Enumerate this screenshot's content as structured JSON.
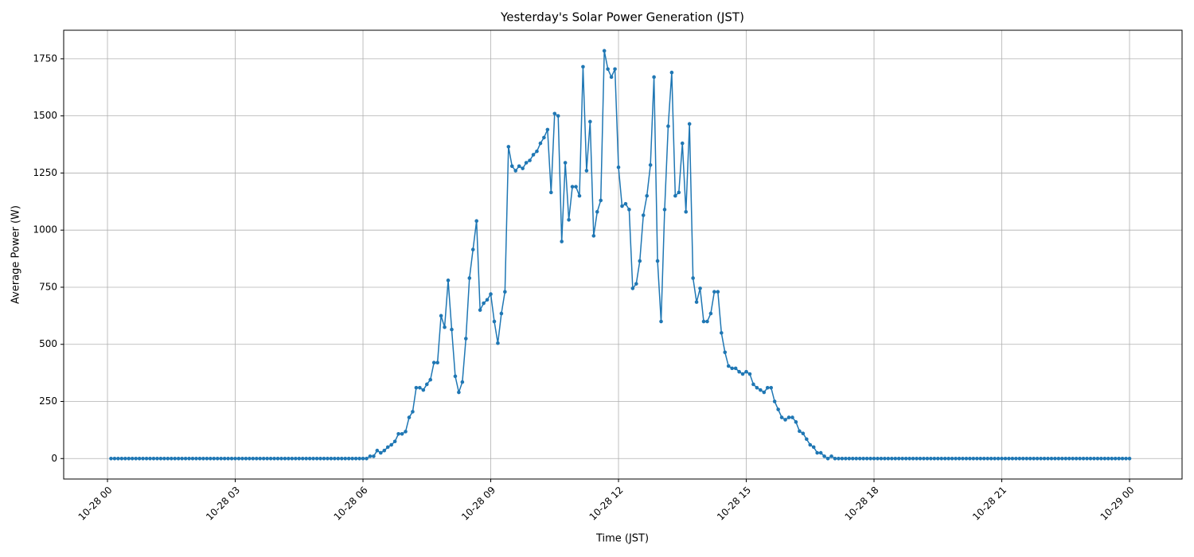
{
  "chart_data": {
    "type": "line",
    "title": "Yesterday's Solar Power Generation (JST)",
    "xlabel": "Time (JST)",
    "ylabel": "Average Power (W)",
    "color": "#1f77b4",
    "grid": true,
    "xlim": [
      -61.7,
      1514
    ],
    "xticks": [
      {
        "value": 0,
        "label": "10-28 00"
      },
      {
        "value": 180,
        "label": "10-28 03"
      },
      {
        "value": 360,
        "label": "10-28 06"
      },
      {
        "value": 540,
        "label": "10-28 09"
      },
      {
        "value": 720,
        "label": "10-28 12"
      },
      {
        "value": 900,
        "label": "10-28 15"
      },
      {
        "value": 1080,
        "label": "10-28 18"
      },
      {
        "value": 1260,
        "label": "10-28 21"
      },
      {
        "value": 1440,
        "label": "10-29 00"
      }
    ],
    "ylim": [
      -89.6,
      1875
    ],
    "yticks": [
      0,
      250,
      500,
      750,
      1000,
      1250,
      1500,
      1750
    ],
    "x": [
      5,
      10,
      15,
      20,
      25,
      30,
      35,
      40,
      45,
      50,
      55,
      60,
      65,
      70,
      75,
      80,
      85,
      90,
      95,
      100,
      105,
      110,
      115,
      120,
      125,
      130,
      135,
      140,
      145,
      150,
      155,
      160,
      165,
      170,
      175,
      180,
      185,
      190,
      195,
      200,
      205,
      210,
      215,
      220,
      225,
      230,
      235,
      240,
      245,
      250,
      255,
      260,
      265,
      270,
      275,
      280,
      285,
      290,
      295,
      300,
      305,
      310,
      315,
      320,
      325,
      330,
      335,
      340,
      345,
      350,
      355,
      360,
      365,
      370,
      375,
      380,
      385,
      390,
      395,
      400,
      405,
      410,
      415,
      420,
      425,
      430,
      435,
      440,
      445,
      450,
      455,
      460,
      465,
      470,
      475,
      480,
      485,
      490,
      495,
      500,
      505,
      510,
      515,
      520,
      525,
      530,
      535,
      540,
      545,
      550,
      555,
      560,
      565,
      570,
      575,
      580,
      585,
      590,
      595,
      600,
      605,
      610,
      615,
      620,
      625,
      630,
      635,
      640,
      645,
      650,
      655,
      660,
      665,
      670,
      675,
      680,
      685,
      690,
      695,
      700,
      705,
      710,
      715,
      720,
      725,
      730,
      735,
      740,
      745,
      750,
      755,
      760,
      765,
      770,
      775,
      780,
      785,
      790,
      795,
      800,
      805,
      810,
      815,
      820,
      825,
      830,
      835,
      840,
      845,
      850,
      855,
      860,
      865,
      870,
      875,
      880,
      885,
      890,
      895,
      900,
      905,
      910,
      915,
      920,
      925,
      930,
      935,
      940,
      945,
      950,
      955,
      960,
      965,
      970,
      975,
      980,
      985,
      990,
      995,
      1000,
      1005,
      1010,
      1015,
      1020,
      1025,
      1030,
      1035,
      1040,
      1045,
      1050,
      1055,
      1060,
      1065,
      1070,
      1075,
      1080,
      1085,
      1090,
      1095,
      1100,
      1105,
      1110,
      1115,
      1120,
      1125,
      1130,
      1135,
      1140,
      1145,
      1150,
      1155,
      1160,
      1165,
      1170,
      1175,
      1180,
      1185,
      1190,
      1195,
      1200,
      1205,
      1210,
      1215,
      1220,
      1225,
      1230,
      1235,
      1240,
      1245,
      1250,
      1255,
      1260,
      1265,
      1270,
      1275,
      1280,
      1285,
      1290,
      1295,
      1300,
      1305,
      1310,
      1315,
      1320,
      1325,
      1330,
      1335,
      1340,
      1345,
      1350,
      1355,
      1360,
      1365,
      1370,
      1375,
      1380,
      1385,
      1390,
      1395,
      1400,
      1405,
      1410,
      1415,
      1420,
      1425,
      1430,
      1435,
      1440
    ],
    "values": [
      0,
      0,
      0,
      0,
      0,
      0,
      0,
      0,
      0,
      0,
      0,
      0,
      0,
      0,
      0,
      0,
      0,
      0,
      0,
      0,
      0,
      0,
      0,
      0,
      0,
      0,
      0,
      0,
      0,
      0,
      0,
      0,
      0,
      0,
      0,
      0,
      0,
      0,
      0,
      0,
      0,
      0,
      0,
      0,
      0,
      0,
      0,
      0,
      0,
      0,
      0,
      0,
      0,
      0,
      0,
      0,
      0,
      0,
      0,
      0,
      0,
      0,
      0,
      0,
      0,
      0,
      0,
      0,
      0,
      0,
      0,
      0,
      0,
      10,
      10,
      35,
      25,
      35,
      50,
      60,
      75,
      108,
      108,
      118,
      180,
      205,
      310,
      310,
      300,
      325,
      345,
      420,
      420,
      625,
      575,
      780,
      565,
      360,
      290,
      335,
      525,
      790,
      915,
      1040,
      650,
      680,
      695,
      720,
      600,
      505,
      635,
      730,
      1365,
      1280,
      1260,
      1280,
      1270,
      1295,
      1305,
      1330,
      1345,
      1380,
      1405,
      1440,
      1165,
      1510,
      1500,
      950,
      1295,
      1045,
      1190,
      1190,
      1150,
      1715,
      1260,
      1475,
      975,
      1080,
      1130,
      1785,
      1705,
      1670,
      1705,
      1275,
      1105,
      1115,
      1090,
      745,
      765,
      865,
      1065,
      1150,
      1285,
      1670,
      865,
      600,
      1090,
      1455,
      1690,
      1150,
      1165,
      1380,
      1080,
      1465,
      790,
      685,
      745,
      600,
      600,
      635,
      730,
      730,
      550,
      465,
      405,
      395,
      395,
      380,
      370,
      380,
      370,
      325,
      310,
      300,
      290,
      310,
      310,
      250,
      215,
      180,
      170,
      180,
      180,
      160,
      120,
      110,
      85,
      60,
      50,
      25,
      25,
      10,
      0,
      10,
      0,
      0,
      0,
      0,
      0,
      0,
      0,
      0,
      0,
      0,
      0,
      0,
      0,
      0,
      0,
      0,
      0,
      0,
      0,
      0,
      0,
      0,
      0,
      0,
      0,
      0,
      0,
      0,
      0,
      0,
      0,
      0,
      0,
      0,
      0,
      0,
      0,
      0,
      0,
      0,
      0,
      0,
      0,
      0,
      0,
      0,
      0,
      0,
      0,
      0,
      0,
      0,
      0,
      0,
      0,
      0,
      0,
      0,
      0,
      0,
      0,
      0,
      0,
      0,
      0,
      0,
      0,
      0,
      0,
      0,
      0,
      0,
      0,
      0,
      0,
      0,
      0,
      0,
      0,
      0,
      0,
      0,
      0,
      0
    ]
  }
}
